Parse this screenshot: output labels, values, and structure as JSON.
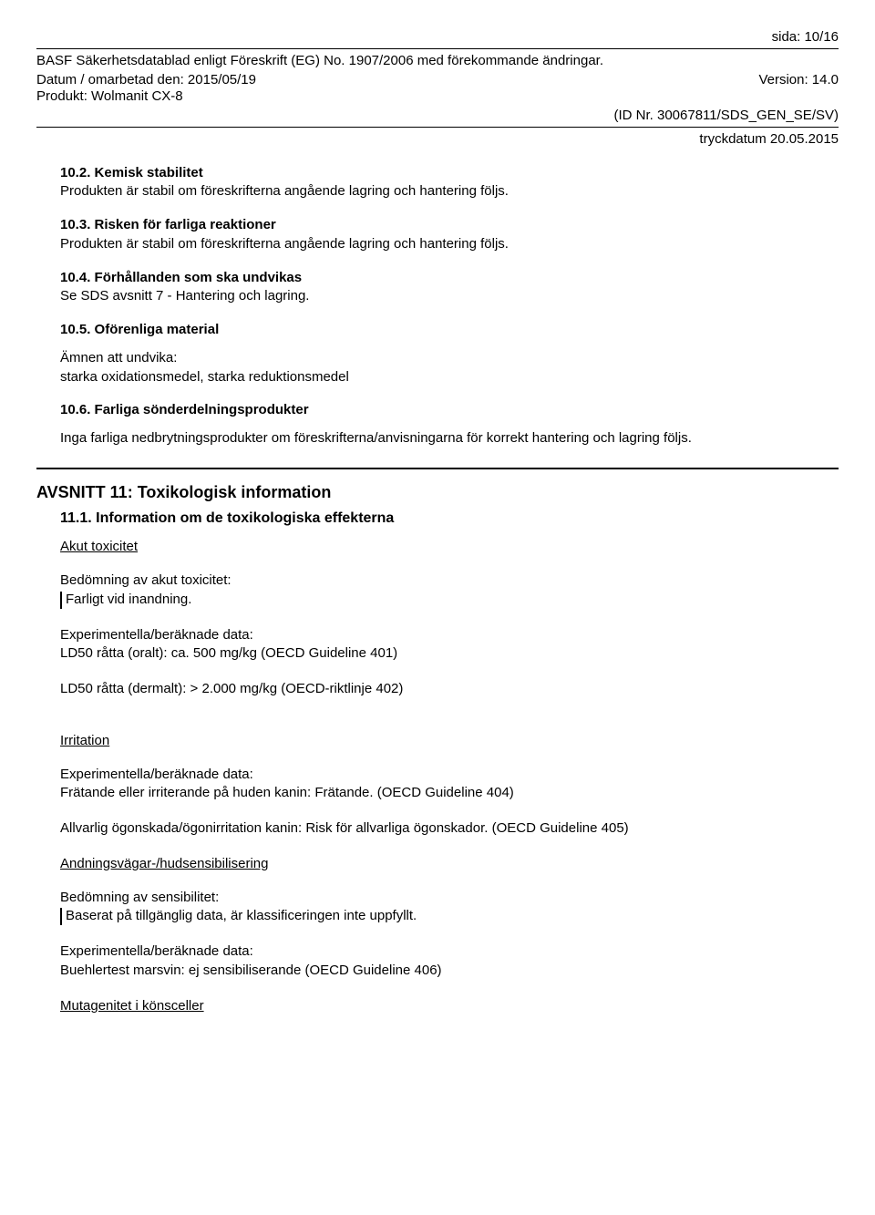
{
  "header": {
    "page_label": "sida: 10/16",
    "line1": "BASF Säkerhetsdatablad enligt Föreskrift (EG) No. 1907/2006 med förekommande ändringar.",
    "date_label": "Datum / omarbetad den: 2015/05/19",
    "version_label": "Version: 14.0",
    "product_label": "Produkt: Wolmanit CX-8",
    "id_label": "(ID Nr. 30067811/SDS_GEN_SE/SV)",
    "print_date": "tryckdatum 20.05.2015"
  },
  "s10_2": {
    "title": "10.2. Kemisk stabilitet",
    "text": "Produkten är stabil om föreskrifterna angående lagring och hantering följs."
  },
  "s10_3": {
    "title": "10.3. Risken för farliga reaktioner",
    "text": "Produkten är stabil om föreskrifterna angående lagring och hantering följs."
  },
  "s10_4": {
    "title": "10.4. Förhållanden som ska undvikas",
    "text": "Se SDS avsnitt 7 - Hantering och lagring."
  },
  "s10_5": {
    "title": "10.5. Oförenliga material",
    "avoid_label": "Ämnen att undvika:",
    "avoid_text": "starka oxidationsmedel, starka reduktionsmedel"
  },
  "s10_6": {
    "title": "10.6. Farliga sönderdelningsprodukter",
    "text": "Inga farliga nedbrytningsprodukter om föreskrifterna/anvisningarna för korrekt hantering och lagring följs."
  },
  "s11": {
    "title": "AVSNITT 11: Toxikologisk information",
    "sub_title": "11.1. Information om de toxikologiska effekterna",
    "acute": {
      "heading": "Akut toxicitet",
      "assess_label": "Bedömning av akut toxicitet:",
      "assess_text": "Farligt vid inandning.",
      "exp_label": "Experimentella/beräknade data:",
      "ld50_oral": "LD50 råtta (oralt): ca. 500 mg/kg (OECD Guideline 401)",
      "ld50_dermal": "LD50 råtta (dermalt): > 2.000 mg/kg (OECD-riktlinje 402)"
    },
    "irritation": {
      "heading": "Irritation",
      "exp_label": "Experimentella/beräknade data:",
      "skin": "Frätande eller irriterande på huden kanin: Frätande. (OECD Guideline 404)",
      "eye": "Allvarlig ögonskada/ögonirritation kanin: Risk för allvarliga ögonskador. (OECD Guideline 405)"
    },
    "sens": {
      "heading": "Andningsvägar-/hudsensibilisering",
      "assess_label": "Bedömning av sensibilitet:",
      "assess_text": "Baserat på tillgänglig data, är klassificeringen inte uppfyllt.",
      "exp_label": "Experimentella/beräknade data:",
      "exp_text": "Buehlertest marsvin: ej sensibiliserande (OECD Guideline 406)"
    },
    "mutagen": {
      "heading": "Mutagenitet i könsceller"
    }
  }
}
